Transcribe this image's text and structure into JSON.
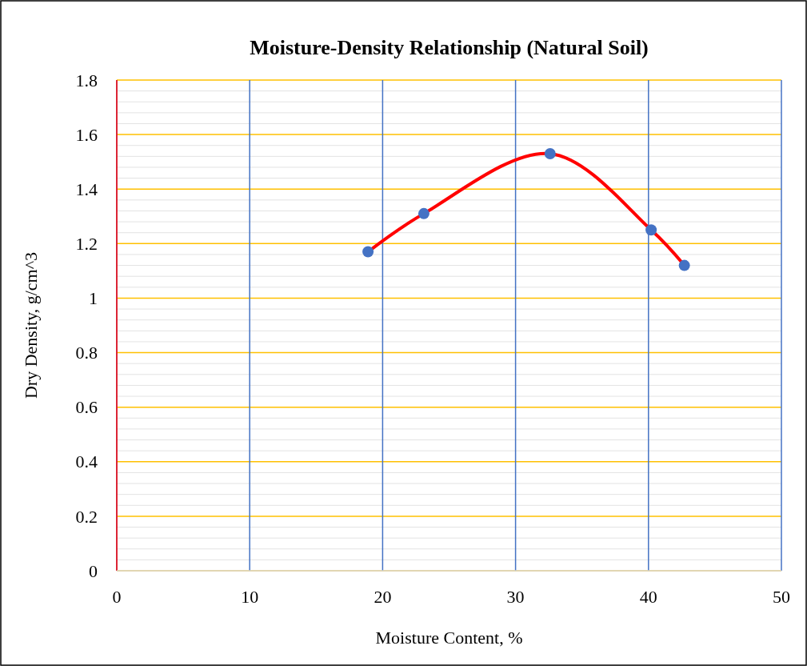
{
  "chart_data": {
    "type": "line",
    "title": "Moisture-Density Relationship (Natural Soil)",
    "xlabel": "Moisture Content, %",
    "ylabel": "Dry Density, g/cm^3",
    "xlim": [
      0,
      50
    ],
    "xticks": [
      0,
      10,
      20,
      30,
      40,
      50
    ],
    "ylim": [
      0,
      1.8
    ],
    "yticks": [
      0,
      0.2,
      0.4,
      0.6,
      0.8,
      1,
      1.2,
      1.4,
      1.6,
      1.8
    ],
    "grid": true,
    "series": [
      {
        "color": "#ff0000",
        "marker": "none",
        "x": [
          18.9,
          23.1,
          32.6,
          40.2,
          42.7
        ],
        "values": [
          1.17,
          1.31,
          1.53,
          1.25,
          1.12
        ]
      },
      {
        "type": "scatter",
        "color": "#4472c4",
        "marker": "circle",
        "x": [
          18.9,
          23.1,
          32.6,
          40.2,
          42.7
        ],
        "values": [
          1.17,
          1.31,
          1.53,
          1.25,
          1.12
        ]
      }
    ]
  }
}
